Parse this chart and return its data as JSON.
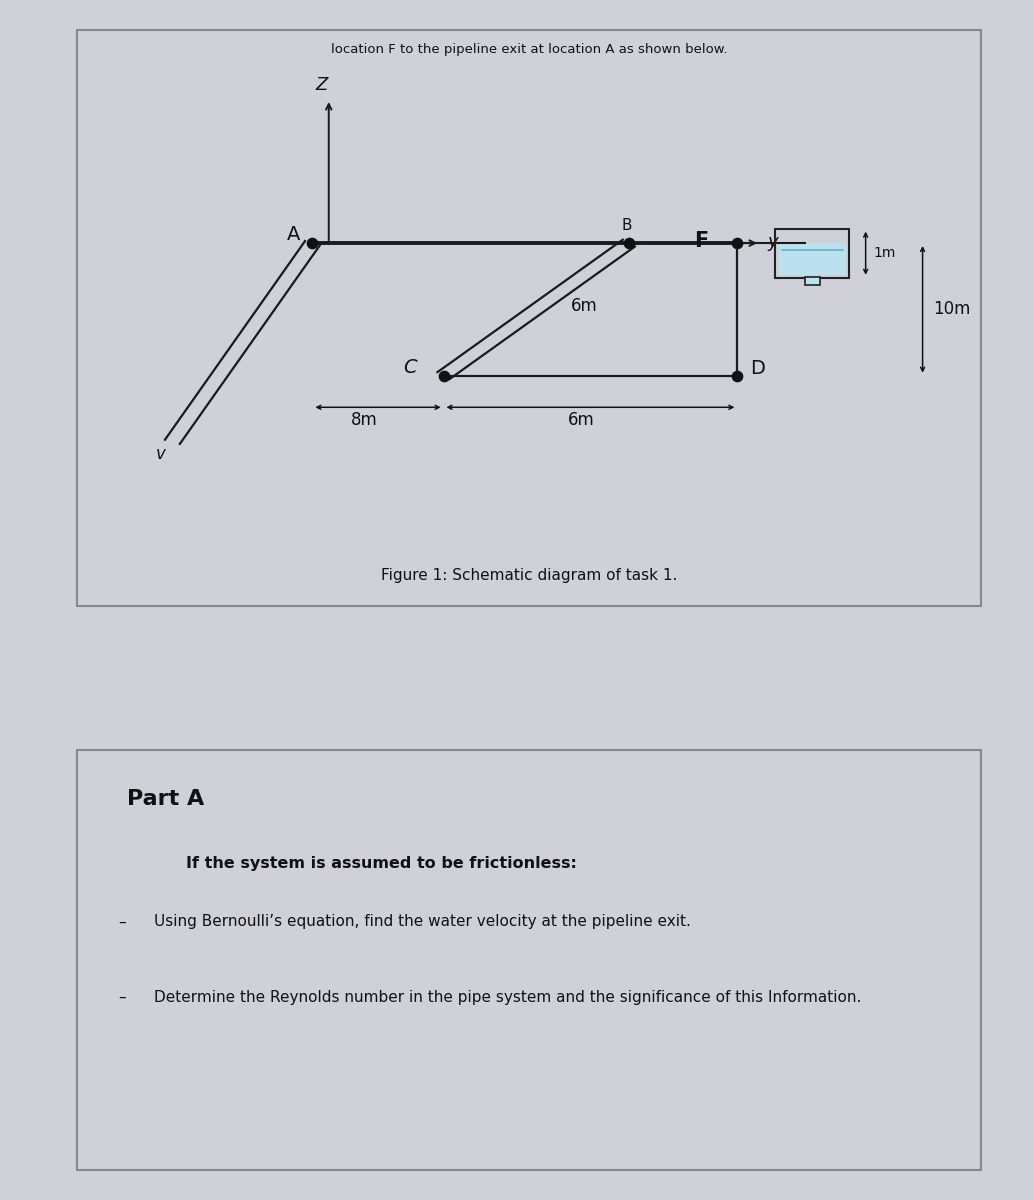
{
  "page_bg": "#d0d0d8",
  "box_bg": "#ffffff",
  "border_color": "#888888",
  "line_color": "#1a1a1a",
  "dot_color": "#111111",
  "tank_fill": "#b8e4f0",
  "tank_border": "#222222",
  "arrow_color": "#111111",
  "fig_caption": "Figure 1: Schematic diagram of task 1.",
  "part_a_title": "Part A",
  "part_a_subtitle": "If the system is assumed to be frictionless:",
  "bullet1": "Using Bernoulli’s equation, find the water velocity at the pipeline exit.",
  "bullet2": "Determine the Reynolds number in the pipe system and the significance of this Information.",
  "header_text": "location F to the pipeline exit at location A as shown below.",
  "label_A": "A",
  "label_B": "B",
  "label_C": "C",
  "label_D": "D",
  "label_F": "F",
  "label_Z": "Z",
  "label_y": "y",
  "label_v": "v",
  "label_8m": "8m",
  "label_6m_h": "6m",
  "label_6m_v": "6m",
  "label_10m": "10m",
  "label_1m": "1m"
}
